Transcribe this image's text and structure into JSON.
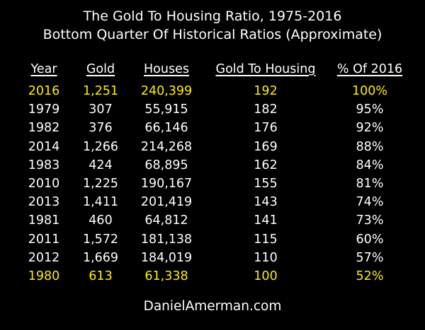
{
  "chart_data": {
    "type": "table",
    "title": "The Gold To Housing Ratio, 1975-2016",
    "subtitle": "Bottom Quarter Of Historical Ratios (Approximate)",
    "columns": [
      "Year",
      "Gold",
      "Houses",
      "Gold To Housing",
      "% Of 2016"
    ],
    "rows": [
      {
        "year": "2016",
        "gold": "1,251",
        "houses": "240,399",
        "ratio": "192",
        "pct": "100%",
        "highlight": true
      },
      {
        "year": "1979",
        "gold": "307",
        "houses": "55,915",
        "ratio": "182",
        "pct": "95%",
        "highlight": false
      },
      {
        "year": "1982",
        "gold": "376",
        "houses": "66,146",
        "ratio": "176",
        "pct": "92%",
        "highlight": false
      },
      {
        "year": "2014",
        "gold": "1,266",
        "houses": "214,268",
        "ratio": "169",
        "pct": "88%",
        "highlight": false
      },
      {
        "year": "1983",
        "gold": "424",
        "houses": "68,895",
        "ratio": "162",
        "pct": "84%",
        "highlight": false
      },
      {
        "year": "2010",
        "gold": "1,225",
        "houses": "190,167",
        "ratio": "155",
        "pct": "81%",
        "highlight": false
      },
      {
        "year": "2013",
        "gold": "1,411",
        "houses": "201,419",
        "ratio": "143",
        "pct": "74%",
        "highlight": false
      },
      {
        "year": "1981",
        "gold": "460",
        "houses": "64,812",
        "ratio": "141",
        "pct": "73%",
        "highlight": false
      },
      {
        "year": "2011",
        "gold": "1,572",
        "houses": "181,138",
        "ratio": "115",
        "pct": "60%",
        "highlight": false
      },
      {
        "year": "2012",
        "gold": "1,669",
        "houses": "184,019",
        "ratio": "110",
        "pct": "57%",
        "highlight": false
      },
      {
        "year": "1980",
        "gold": "613",
        "houses": "61,338",
        "ratio": "100",
        "pct": "52%",
        "highlight": true
      }
    ]
  },
  "footer": "DanielAmerman.com",
  "colors": {
    "background": "#000000",
    "text": "#ffffff",
    "highlight": "#ffee00"
  }
}
